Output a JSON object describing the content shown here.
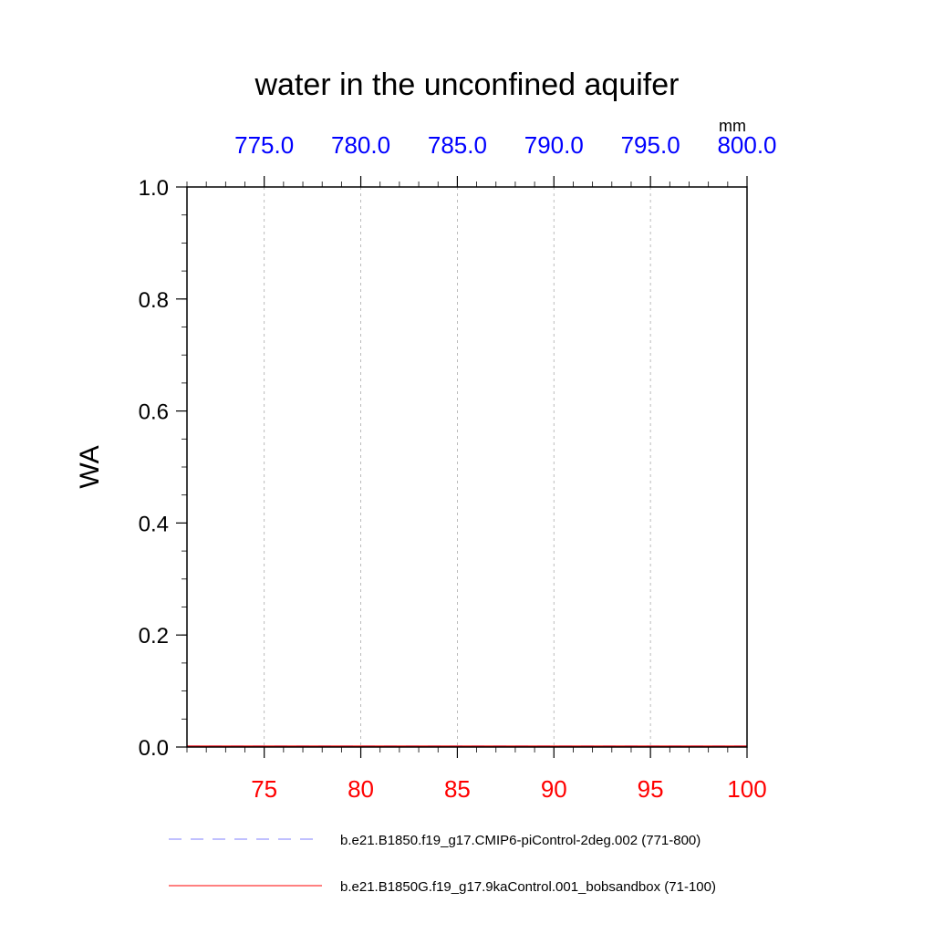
{
  "chart_data": {
    "type": "line",
    "title": "water in the unconfined aquifer",
    "ylabel": "WA",
    "top_axis_units": "mm",
    "ylim": [
      0.0,
      1.0
    ],
    "xlim_bottom": [
      71,
      100
    ],
    "xlim_top": [
      771,
      800
    ],
    "y_ticks": [
      "0.0",
      "0.2",
      "0.4",
      "0.6",
      "0.8",
      "1.0"
    ],
    "bottom_ticks": [
      "75",
      "80",
      "85",
      "90",
      "95",
      "100"
    ],
    "top_ticks": [
      "775.0",
      "780.0",
      "785.0",
      "790.0",
      "795.0",
      "800.0"
    ],
    "bottom_axis_color": "#ff0000",
    "top_axis_color": "#0000ff",
    "vertical_grid": true,
    "series": [
      {
        "name": "b.e21.B1850.f19_g17.CMIP6-piControl-2deg.002 (771-800)",
        "axis": "top",
        "color": "#8080ff",
        "style": "dashed",
        "x": [
          771,
          775,
          780,
          785,
          790,
          795,
          800
        ],
        "y": [
          0,
          0,
          0,
          0,
          0,
          0,
          0
        ]
      },
      {
        "name": "b.e21.B1850G.f19_g17.9kaControl.001_bobsandbox (71-100)",
        "axis": "bottom",
        "color": "#ff0000",
        "style": "solid",
        "x": [
          71,
          75,
          80,
          85,
          90,
          95,
          100
        ],
        "y": [
          0,
          0,
          0,
          0,
          0,
          0,
          0
        ]
      }
    ]
  }
}
